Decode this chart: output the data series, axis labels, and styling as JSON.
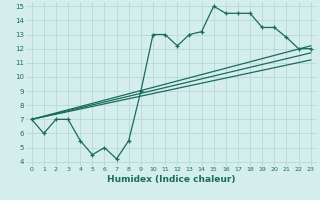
{
  "xlabel": "Humidex (Indice chaleur)",
  "bg_color": "#d4eeee",
  "grid_color": "#b8d8d8",
  "line_color": "#1a6b5a",
  "xlim": [
    -0.5,
    23.5
  ],
  "ylim": [
    3.7,
    15.3
  ],
  "xticks": [
    0,
    1,
    2,
    3,
    4,
    5,
    6,
    7,
    8,
    9,
    10,
    11,
    12,
    13,
    14,
    15,
    16,
    17,
    18,
    19,
    20,
    21,
    22,
    23
  ],
  "yticks": [
    4,
    5,
    6,
    7,
    8,
    9,
    10,
    11,
    12,
    13,
    14,
    15
  ],
  "curve1_x": [
    0,
    1,
    2,
    3,
    4,
    5,
    6,
    7,
    8,
    9,
    10,
    11,
    12,
    13,
    14,
    15,
    16,
    17,
    18,
    19,
    20,
    21,
    22,
    23
  ],
  "curve1_y": [
    7.0,
    6.0,
    7.0,
    7.0,
    5.5,
    4.5,
    5.0,
    4.2,
    5.5,
    9.0,
    13.0,
    13.0,
    12.2,
    13.0,
    13.2,
    15.0,
    14.5,
    14.5,
    14.5,
    13.5,
    13.5,
    12.8,
    12.0,
    12.0
  ],
  "line1_x": [
    0,
    23
  ],
  "line1_y": [
    7.0,
    12.2
  ],
  "line2_x": [
    0,
    23
  ],
  "line2_y": [
    7.0,
    11.7
  ],
  "line3_x": [
    0,
    23
  ],
  "line3_y": [
    7.0,
    11.2
  ]
}
